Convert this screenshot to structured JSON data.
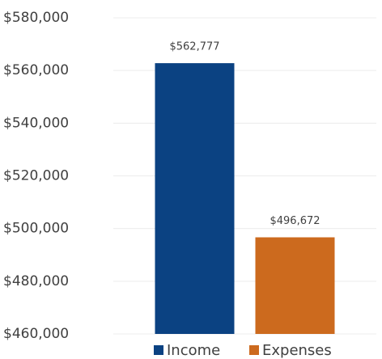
{
  "chart_data": {
    "type": "bar",
    "categories": [
      null
    ],
    "series": [
      {
        "name": "Income",
        "color": "#0b4282",
        "values": [
          562777
        ],
        "value_labels": [
          "$562,777"
        ]
      },
      {
        "name": "Expenses",
        "color": "#cc6a1e",
        "values": [
          496672
        ],
        "value_labels": [
          "$496,672"
        ]
      }
    ],
    "ylim": [
      460000,
      580000
    ],
    "yticks": [
      {
        "value": 460000,
        "label": "$460,000"
      },
      {
        "value": 480000,
        "label": "$480,000"
      },
      {
        "value": 500000,
        "label": "$500,000"
      },
      {
        "value": 520000,
        "label": "$520,000"
      },
      {
        "value": 540000,
        "label": "$540,000"
      },
      {
        "value": 560000,
        "label": "$560,000"
      },
      {
        "value": 580000,
        "label": "$580,000"
      }
    ],
    "grid": true,
    "legend": "bottom"
  }
}
